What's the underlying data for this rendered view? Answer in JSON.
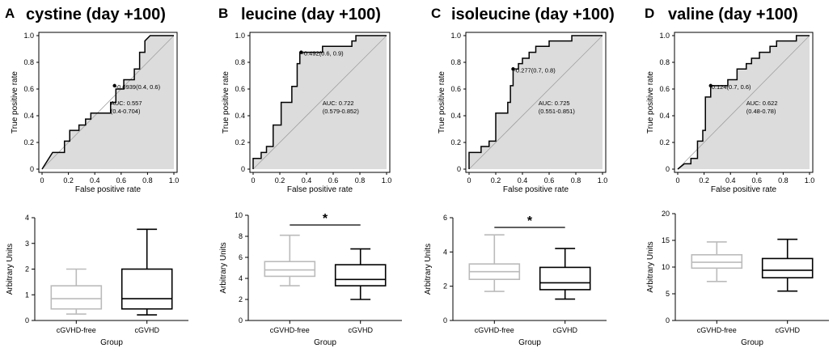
{
  "chart_data": [
    {
      "panel": "A",
      "title": "cystine (day +100)",
      "roc": {
        "type": "line",
        "xlabel": "False positive rate",
        "ylabel": "True positive rate",
        "xticks": [
          "0",
          "0.2",
          "0.4",
          "0.6",
          "0.8",
          "1.0"
        ],
        "yticks": [
          "0",
          "0.2",
          "0.4",
          "0.6",
          "0.8",
          "1.0"
        ],
        "xlim": [
          0,
          1
        ],
        "ylim": [
          0,
          1
        ],
        "curve": [
          [
            0,
            0
          ],
          [
            0.08,
            0.125
          ],
          [
            0.17,
            0.125
          ],
          [
            0.17,
            0.21
          ],
          [
            0.21,
            0.21
          ],
          [
            0.21,
            0.29
          ],
          [
            0.28,
            0.29
          ],
          [
            0.28,
            0.33
          ],
          [
            0.33,
            0.33
          ],
          [
            0.33,
            0.375
          ],
          [
            0.37,
            0.375
          ],
          [
            0.37,
            0.42
          ],
          [
            0.52,
            0.42
          ],
          [
            0.52,
            0.5
          ],
          [
            0.56,
            0.5
          ],
          [
            0.56,
            0.6
          ],
          [
            0.62,
            0.6
          ],
          [
            0.62,
            0.67
          ],
          [
            0.7,
            0.67
          ],
          [
            0.7,
            0.75
          ],
          [
            0.74,
            0.75
          ],
          [
            0.74,
            0.875
          ],
          [
            0.78,
            0.875
          ],
          [
            0.78,
            0.96
          ],
          [
            0.82,
            1.0
          ],
          [
            1.0,
            1.0
          ]
        ],
        "threshold_point": [
          0.55,
          0.625
        ],
        "threshold_label": "-0.0939(0.4, 0.6)",
        "auc_label": "AUC: 0.557",
        "ci_label": "(0.4-0.704)"
      },
      "box": {
        "type": "box",
        "ylabel": "Arbitrary Units",
        "xlabel": "Group",
        "ylim": [
          0,
          4
        ],
        "yticks": [
          "0",
          "1",
          "2",
          "3",
          "4"
        ],
        "categories": [
          "cGVHD-free",
          "cGVHD"
        ],
        "groups": [
          {
            "name": "cGVHD-free",
            "color": "#bbbbbb",
            "min": 0.25,
            "q1": 0.45,
            "median": 0.85,
            "q3": 1.35,
            "max": 2.0
          },
          {
            "name": "cGVHD",
            "color": "#000000",
            "min": 0.22,
            "q1": 0.45,
            "median": 0.85,
            "q3": 2.0,
            "max": 3.55
          }
        ],
        "significance": ""
      }
    },
    {
      "panel": "B",
      "title": "leucine (day +100)",
      "roc": {
        "type": "line",
        "xlabel": "False positive rate",
        "ylabel": "True positive rate",
        "xticks": [
          "0",
          "0.2",
          "0.4",
          "0.6",
          "0.8",
          "1.0"
        ],
        "yticks": [
          "0",
          "0.2",
          "0.4",
          "0.6",
          "0.8",
          "1.0"
        ],
        "xlim": [
          0,
          1
        ],
        "ylim": [
          0,
          1
        ],
        "curve": [
          [
            0,
            0
          ],
          [
            0,
            0.08
          ],
          [
            0.06,
            0.08
          ],
          [
            0.06,
            0.125
          ],
          [
            0.1,
            0.125
          ],
          [
            0.1,
            0.17
          ],
          [
            0.15,
            0.17
          ],
          [
            0.15,
            0.33
          ],
          [
            0.21,
            0.33
          ],
          [
            0.21,
            0.5
          ],
          [
            0.29,
            0.5
          ],
          [
            0.29,
            0.62
          ],
          [
            0.33,
            0.62
          ],
          [
            0.33,
            0.79
          ],
          [
            0.35,
            0.79
          ],
          [
            0.35,
            0.875
          ],
          [
            0.52,
            0.875
          ],
          [
            0.52,
            0.92
          ],
          [
            0.74,
            0.92
          ],
          [
            0.74,
            0.96
          ],
          [
            0.77,
            0.96
          ],
          [
            0.77,
            1.0
          ],
          [
            1.0,
            1.0
          ]
        ],
        "threshold_point": [
          0.36,
          0.875
        ],
        "threshold_label": "-0.492(0.6, 0.9)",
        "auc_label": "AUC: 0.722",
        "ci_label": "(0.579-0.852)"
      },
      "box": {
        "type": "box",
        "ylabel": "Arbitrary Units",
        "xlabel": "Group",
        "ylim": [
          0,
          10
        ],
        "yticks": [
          "0",
          "2",
          "4",
          "6",
          "8",
          "10"
        ],
        "categories": [
          "cGVHD-free",
          "cGVHD"
        ],
        "groups": [
          {
            "name": "cGVHD-free",
            "color": "#bbbbbb",
            "min": 3.3,
            "q1": 4.2,
            "median": 4.8,
            "q3": 5.6,
            "max": 8.1
          },
          {
            "name": "cGVHD",
            "color": "#000000",
            "min": 2.0,
            "q1": 3.3,
            "median": 3.9,
            "q3": 5.3,
            "max": 6.8
          }
        ],
        "significance": "*"
      }
    },
    {
      "panel": "C",
      "title": "isoleucine (day +100)",
      "roc": {
        "type": "line",
        "xlabel": "False positive rate",
        "ylabel": "True positive rate",
        "xticks": [
          "0",
          "0.2",
          "0.4",
          "0.6",
          "0.8",
          "1.0"
        ],
        "yticks": [
          "0",
          "0.2",
          "0.4",
          "0.6",
          "0.8",
          "1.0"
        ],
        "xlim": [
          0,
          1
        ],
        "ylim": [
          0,
          1
        ],
        "curve": [
          [
            0,
            0
          ],
          [
            0,
            0.125
          ],
          [
            0.09,
            0.125
          ],
          [
            0.09,
            0.17
          ],
          [
            0.15,
            0.17
          ],
          [
            0.15,
            0.21
          ],
          [
            0.2,
            0.21
          ],
          [
            0.2,
            0.42
          ],
          [
            0.29,
            0.42
          ],
          [
            0.29,
            0.5
          ],
          [
            0.31,
            0.5
          ],
          [
            0.31,
            0.625
          ],
          [
            0.33,
            0.625
          ],
          [
            0.33,
            0.75
          ],
          [
            0.37,
            0.75
          ],
          [
            0.37,
            0.79
          ],
          [
            0.4,
            0.79
          ],
          [
            0.4,
            0.83
          ],
          [
            0.45,
            0.83
          ],
          [
            0.45,
            0.875
          ],
          [
            0.5,
            0.875
          ],
          [
            0.5,
            0.92
          ],
          [
            0.6,
            0.92
          ],
          [
            0.6,
            0.96
          ],
          [
            0.77,
            0.96
          ],
          [
            0.77,
            1.0
          ],
          [
            1.0,
            1.0
          ]
        ],
        "threshold_point": [
          0.33,
          0.75
        ],
        "threshold_label": "-0.277(0.7, 0.8)",
        "auc_label": "AUC: 0.725",
        "ci_label": "(0.551-0.851)"
      },
      "box": {
        "type": "box",
        "ylabel": "Arbitrary Units",
        "xlabel": "Group",
        "ylim": [
          0,
          6
        ],
        "yticks": [
          "0",
          "2",
          "4",
          "6"
        ],
        "categories": [
          "cGVHD-free",
          "cGVHD"
        ],
        "groups": [
          {
            "name": "cGVHD-free",
            "color": "#bbbbbb",
            "min": 1.7,
            "q1": 2.4,
            "median": 2.85,
            "q3": 3.3,
            "max": 5.0
          },
          {
            "name": "cGVHD",
            "color": "#000000",
            "min": 1.25,
            "q1": 1.8,
            "median": 2.2,
            "q3": 3.1,
            "max": 4.2
          }
        ],
        "significance": "*"
      }
    },
    {
      "panel": "D",
      "title": "valine (day +100)",
      "roc": {
        "type": "line",
        "xlabel": "False positive rate",
        "ylabel": "True positive rate",
        "xticks": [
          "0",
          "0.2",
          "0.4",
          "0.6",
          "0.8",
          "1.0"
        ],
        "yticks": [
          "0",
          "0.2",
          "0.4",
          "0.6",
          "0.8",
          "1.0"
        ],
        "xlim": [
          0,
          1
        ],
        "ylim": [
          0,
          1
        ],
        "curve": [
          [
            0,
            0
          ],
          [
            0.05,
            0.04
          ],
          [
            0.1,
            0.04
          ],
          [
            0.1,
            0.08
          ],
          [
            0.15,
            0.08
          ],
          [
            0.15,
            0.21
          ],
          [
            0.19,
            0.21
          ],
          [
            0.19,
            0.29
          ],
          [
            0.21,
            0.29
          ],
          [
            0.21,
            0.54
          ],
          [
            0.25,
            0.54
          ],
          [
            0.25,
            0.625
          ],
          [
            0.38,
            0.625
          ],
          [
            0.38,
            0.67
          ],
          [
            0.45,
            0.67
          ],
          [
            0.45,
            0.75
          ],
          [
            0.52,
            0.75
          ],
          [
            0.52,
            0.79
          ],
          [
            0.56,
            0.79
          ],
          [
            0.56,
            0.83
          ],
          [
            0.62,
            0.83
          ],
          [
            0.62,
            0.875
          ],
          [
            0.7,
            0.875
          ],
          [
            0.7,
            0.92
          ],
          [
            0.75,
            0.92
          ],
          [
            0.75,
            0.96
          ],
          [
            0.9,
            0.96
          ],
          [
            0.9,
            1.0
          ],
          [
            1.0,
            1.0
          ]
        ],
        "threshold_point": [
          0.25,
          0.625
        ],
        "threshold_label": "0.124(0.7, 0.6)",
        "auc_label": "AUC: 0.622",
        "ci_label": "(0.48-0.78)"
      },
      "box": {
        "type": "box",
        "ylabel": "Arbitrary Units",
        "xlabel": "Group",
        "ylim": [
          0,
          20
        ],
        "yticks": [
          "0",
          "5",
          "10",
          "15",
          "20"
        ],
        "categories": [
          "cGVHD-free",
          "cGVHD"
        ],
        "groups": [
          {
            "name": "cGVHD-free",
            "color": "#bbbbbb",
            "min": 7.3,
            "q1": 9.8,
            "median": 10.9,
            "q3": 12.3,
            "max": 14.7
          },
          {
            "name": "cGVHD",
            "color": "#000000",
            "min": 5.5,
            "q1": 8.0,
            "median": 9.4,
            "q3": 11.6,
            "max": 15.2
          }
        ],
        "significance": ""
      }
    }
  ]
}
